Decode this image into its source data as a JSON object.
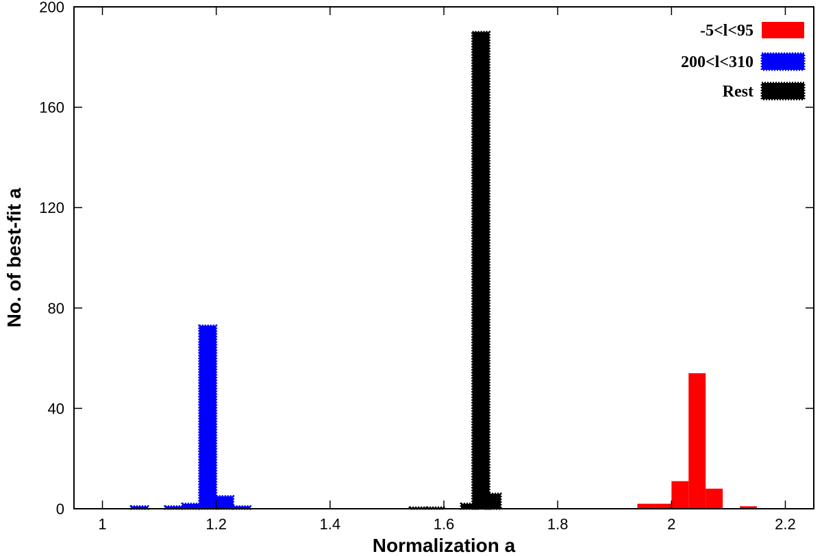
{
  "chart_data": {
    "type": "bar",
    "title": "",
    "xlabel": "Normalization a",
    "ylabel": "No. of best-fit a",
    "xlim": [
      0.95,
      2.25
    ],
    "ylim": [
      0,
      200
    ],
    "xticks": [
      1,
      1.2,
      1.4,
      1.6,
      1.8,
      2,
      2.2
    ],
    "xtick_labels": [
      "1",
      "1.2",
      "1.4",
      "1.6",
      "1.8",
      "2",
      "2.2"
    ],
    "yticks": [
      0,
      40,
      80,
      120,
      160,
      200
    ],
    "ytick_labels": [
      "0",
      "40",
      "80",
      "120",
      "160",
      "200"
    ],
    "grid": false,
    "legend_position": "top-right",
    "bin_width": 0.03,
    "series": [
      {
        "name": "-5<l<95",
        "color": "#ff0000",
        "style": "solid",
        "bins": [
          {
            "x": 1.955,
            "y": 2
          },
          {
            "x": 1.985,
            "y": 2
          },
          {
            "x": 2.015,
            "y": 11
          },
          {
            "x": 2.045,
            "y": 54
          },
          {
            "x": 2.075,
            "y": 8
          },
          {
            "x": 2.135,
            "y": 1
          }
        ]
      },
      {
        "name": "200<l<310",
        "color": "#0000ff",
        "style": "dotted",
        "bins": [
          {
            "x": 1.065,
            "y": 1
          },
          {
            "x": 1.125,
            "y": 1
          },
          {
            "x": 1.155,
            "y": 2
          },
          {
            "x": 1.185,
            "y": 73
          },
          {
            "x": 1.215,
            "y": 5
          },
          {
            "x": 1.245,
            "y": 1
          }
        ]
      },
      {
        "name": "Rest",
        "color": "#000000",
        "style": "dotted",
        "bins": [
          {
            "x": 1.555,
            "y": 0.5
          },
          {
            "x": 1.585,
            "y": 0.5
          },
          {
            "x": 1.645,
            "y": 2
          },
          {
            "x": 1.665,
            "y": 190
          },
          {
            "x": 1.685,
            "y": 6
          }
        ]
      }
    ]
  }
}
